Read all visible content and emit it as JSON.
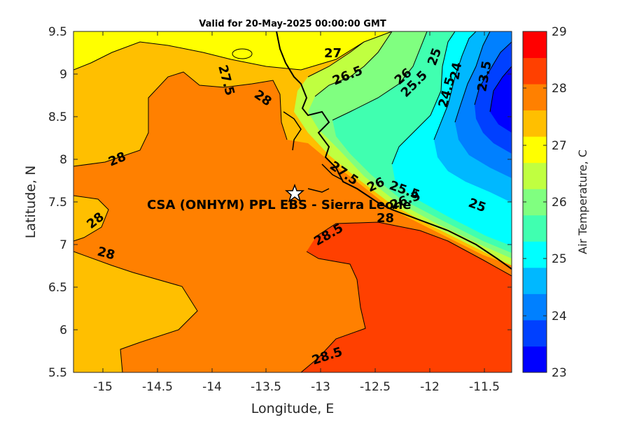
{
  "title": "Valid for 20-May-2025 00:00:00 GMT",
  "xlabel": "Longitude, E",
  "ylabel": "Latitude, N",
  "colorbar_label": "Air Temperature, C",
  "site_label": "CSA (ONHYM) PPL EBS  - Sierra Leone",
  "site_marker": "star-icon",
  "x_ticks": [
    "-15",
    "-14.5",
    "-14",
    "-13.5",
    "-13",
    "-12.5",
    "-12",
    "-11.5"
  ],
  "y_ticks": [
    "9.5",
    "9",
    "8.5",
    "8",
    "7.5",
    "7",
    "6.5",
    "6",
    "5.5"
  ],
  "colorbar_ticks": [
    "29",
    "28",
    "27",
    "26",
    "25",
    "24",
    "23"
  ],
  "colorbar_colors": [
    "#0000ff",
    "#0040ff",
    "#0080ff",
    "#00b8ff",
    "#00ffff",
    "#40ffb0",
    "#80ff80",
    "#c0ff40",
    "#ffff00",
    "#ffbf00",
    "#ff8000",
    "#ff4000",
    "#ff0000"
  ],
  "contour_labels": [
    "27.5",
    "27",
    "26.5",
    "26",
    "25.5",
    "25",
    "24.5",
    "24",
    "23.5",
    "28",
    "28",
    "28",
    "28",
    "28.5",
    "28.5",
    "27.5",
    "26",
    "25.5",
    "26.5",
    "28",
    "25"
  ],
  "chart_data": {
    "type": "heatmap",
    "title": "Valid for 20-May-2025 00:00:00 GMT",
    "xlabel": "Longitude, E",
    "ylabel": "Latitude, N",
    "xlim": [
      -15.25,
      -11.25
    ],
    "ylim": [
      5.5,
      9.5
    ],
    "clim": [
      23,
      29
    ],
    "colorbar_label": "Air Temperature, C",
    "site": {
      "name": "CSA (ONHYM) PPL EBS  - Sierra Leone",
      "lon": -13.25,
      "lat": 7.6
    },
    "contour_values": [
      23.5,
      24,
      24.5,
      25,
      25.5,
      26,
      26.5,
      27,
      27.5,
      28,
      28.5
    ]
  }
}
